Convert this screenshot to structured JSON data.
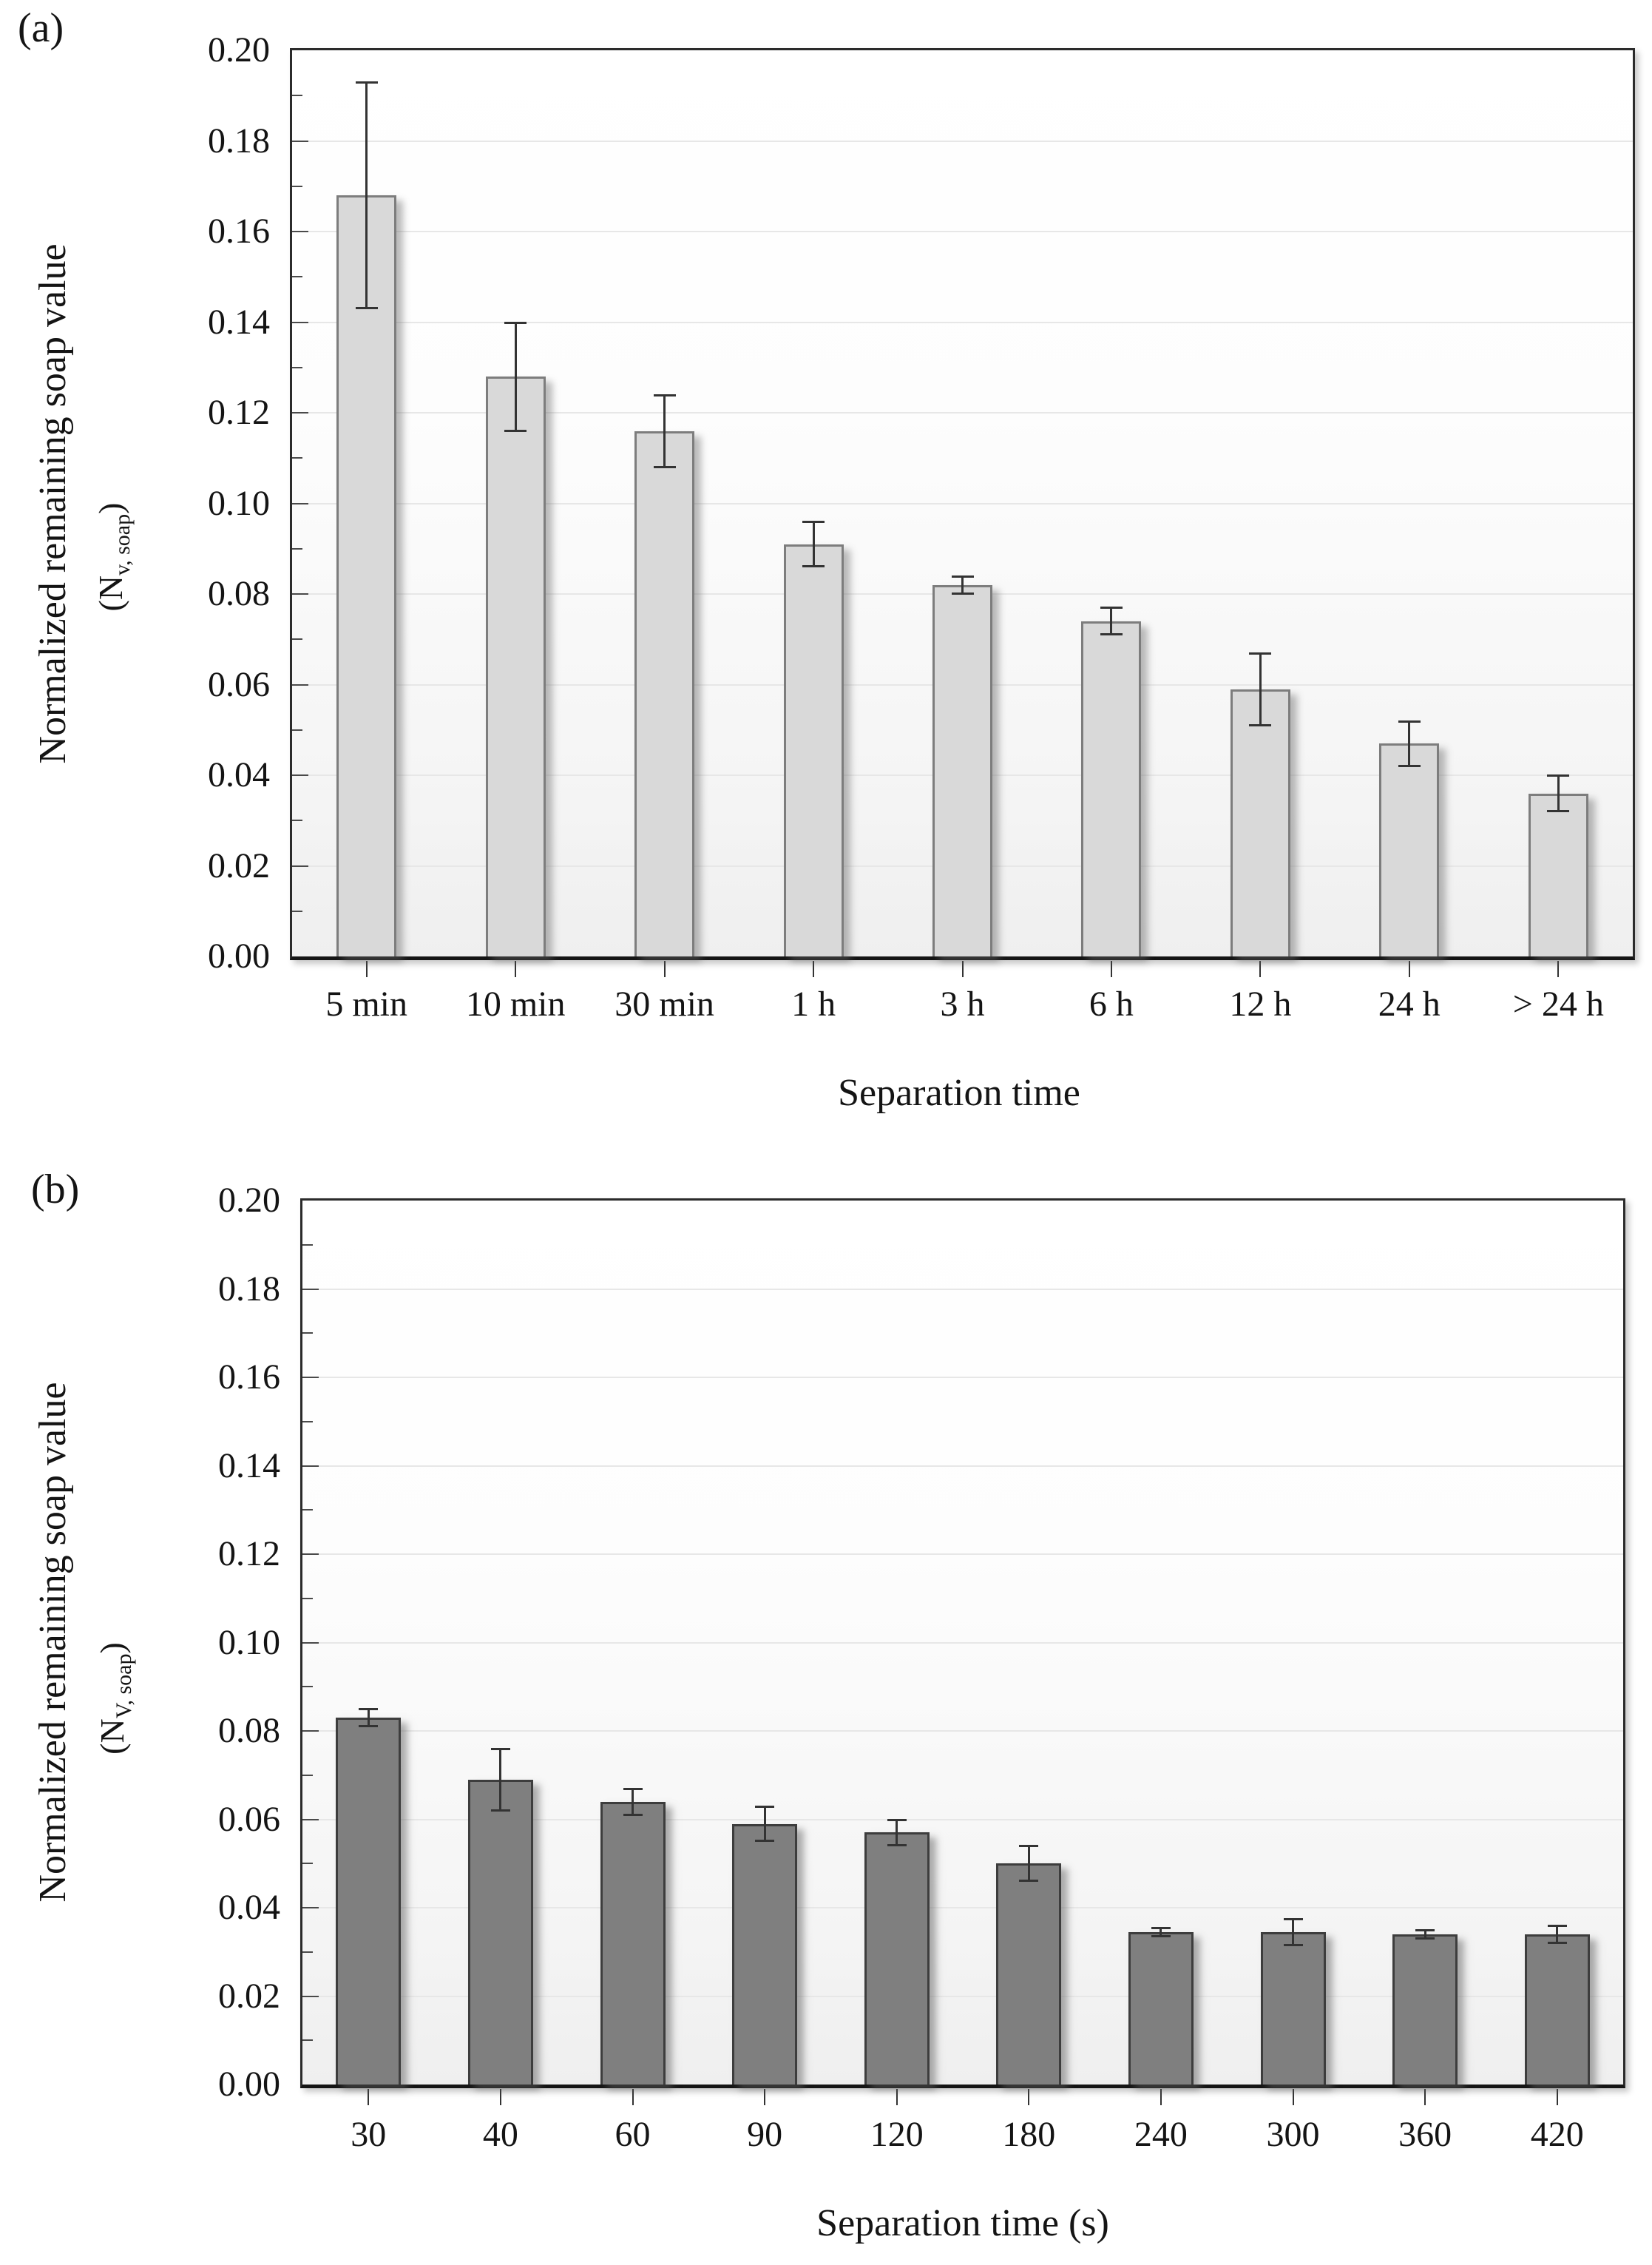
{
  "chart_data": [
    {
      "type": "bar",
      "panel_label": "(a)",
      "title": "",
      "categories": [
        "5 min",
        "10 min",
        "30 min",
        "1 h",
        "3 h",
        "6 h",
        "12 h",
        "24 h",
        "> 24 h"
      ],
      "values": [
        0.168,
        0.128,
        0.116,
        0.091,
        0.082,
        0.074,
        0.059,
        0.047,
        0.036
      ],
      "error_bars": [
        0.025,
        0.012,
        0.008,
        0.005,
        0.002,
        0.003,
        0.008,
        0.005,
        0.004
      ],
      "xlabel": "Separation time",
      "ylabel_line1": "Normalized remaining soap value",
      "ylabel_line2_prefix": "(N",
      "ylabel_line2_subscript": "v, soap",
      "ylabel_line2_suffix": ")",
      "ylim": [
        0,
        0.2
      ],
      "y_major_step": 0.02,
      "y_minor_step": 0.01,
      "y_tick_labels": [
        "0.20",
        "0.18",
        "0.16",
        "0.14",
        "0.12",
        "0.10",
        "0.08",
        "0.06",
        "0.04",
        "0.02",
        "0.00"
      ],
      "grid": "horizontal-major",
      "legend": null,
      "bar_fill": "#d9d9d9",
      "bar_border": "#7d7d7d"
    },
    {
      "type": "bar",
      "panel_label": "(b)",
      "title": "",
      "categories": [
        "30",
        "40",
        "60",
        "90",
        "120",
        "180",
        "240",
        "300",
        "360",
        "420"
      ],
      "values": [
        0.083,
        0.069,
        0.064,
        0.059,
        0.057,
        0.05,
        0.0345,
        0.0345,
        0.034,
        0.034
      ],
      "error_bars": [
        0.002,
        0.007,
        0.003,
        0.004,
        0.003,
        0.004,
        0.001,
        0.003,
        0.001,
        0.002
      ],
      "xlabel": "Separation time (s)",
      "ylabel_line1": "Normalized remaining soap value",
      "ylabel_line2_prefix": "(N",
      "ylabel_line2_subscript": "V, soap",
      "ylabel_line2_suffix": ")",
      "ylim": [
        0,
        0.2
      ],
      "y_major_step": 0.02,
      "y_minor_step": 0.01,
      "y_tick_labels": [
        "0.20",
        "0.18",
        "0.16",
        "0.14",
        "0.12",
        "0.10",
        "0.08",
        "0.06",
        "0.04",
        "0.02",
        "0.00"
      ],
      "grid": "horizontal-major",
      "legend": null,
      "bar_fill": "#7f7f7f",
      "bar_border": "#3d3d3d"
    }
  ]
}
